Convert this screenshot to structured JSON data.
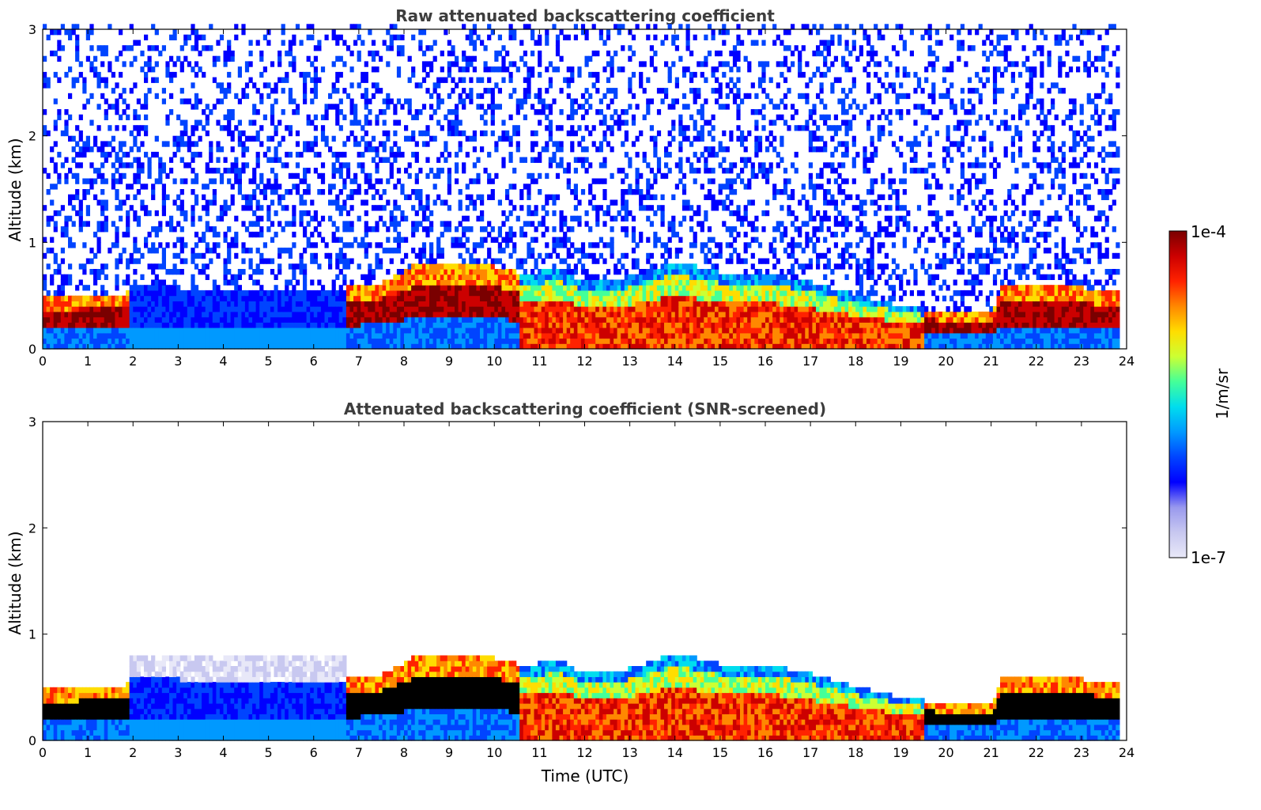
{
  "chart_data": [
    {
      "type": "heatmap",
      "title": "Raw attenuated backscattering coefficient",
      "xlabel": "",
      "ylabel": "Altitude (km)",
      "xlim": [
        0,
        24
      ],
      "ylim": [
        0,
        3
      ],
      "xticks": [
        "0",
        "1",
        "2",
        "3",
        "4",
        "5",
        "6",
        "7",
        "8",
        "9",
        "10",
        "11",
        "12",
        "13",
        "14",
        "15",
        "16",
        "17",
        "18",
        "19",
        "20",
        "21",
        "22",
        "23",
        "24"
      ],
      "yticks": [
        "0",
        "1",
        "2",
        "3"
      ],
      "screened": false
    },
    {
      "type": "heatmap",
      "title": "Attenuated backscattering coefficient (SNR-screened)",
      "xlabel": "Time (UTC)",
      "ylabel": "Altitude (km)",
      "xlim": [
        0,
        24
      ],
      "ylim": [
        0,
        3
      ],
      "xticks": [
        "0",
        "1",
        "2",
        "3",
        "4",
        "5",
        "6",
        "7",
        "8",
        "9",
        "10",
        "11",
        "12",
        "13",
        "14",
        "15",
        "16",
        "17",
        "18",
        "19",
        "20",
        "21",
        "22",
        "23",
        "24"
      ],
      "yticks": [
        "0",
        "1",
        "2",
        "3"
      ],
      "screened": true
    }
  ],
  "colorbar": {
    "label": "1/m/sr",
    "max_label": "1e-4",
    "min_label": "1e-7",
    "scale": "log",
    "colors": [
      "#e8e8f8",
      "#c8c8f0",
      "#9999ee",
      "#0000ff",
      "#0044ff",
      "#0099ff",
      "#00ddee",
      "#44ff99",
      "#ccff33",
      "#ffdd00",
      "#ff8800",
      "#ff2200",
      "#cc0000",
      "#7a0000"
    ]
  },
  "layer_profile": {
    "time_utc": [
      0,
      1,
      1.85,
      1.9,
      3,
      5,
      6.7,
      6.75,
      7.5,
      8.2,
      9,
      10,
      10.5,
      11,
      11.5,
      12,
      13,
      14,
      15,
      16,
      17,
      18,
      19,
      20,
      21,
      21.2,
      22,
      23,
      23.8
    ],
    "layer_top_km": [
      0.45,
      0.47,
      0.5,
      0.55,
      0.55,
      0.52,
      0.5,
      0.55,
      0.6,
      0.75,
      0.8,
      0.75,
      0.7,
      0.7,
      0.72,
      0.6,
      0.65,
      0.8,
      0.7,
      0.7,
      0.6,
      0.48,
      0.38,
      0.32,
      0.3,
      0.55,
      0.55,
      0.55,
      0.5
    ]
  }
}
